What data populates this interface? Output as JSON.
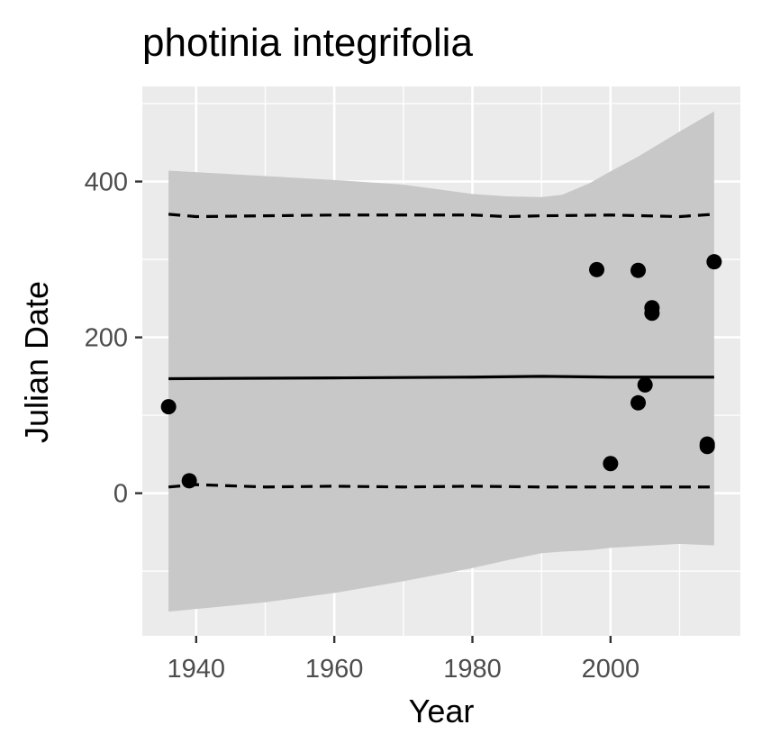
{
  "chart_data": {
    "type": "scatter",
    "title": "photinia integrifolia",
    "xlabel": "Year",
    "ylabel": "Julian Date",
    "xlim": [
      1932.2,
      2018.8
    ],
    "ylim": [
      -183,
      522
    ],
    "x_ticks": [
      1940,
      1960,
      1980,
      2000
    ],
    "x_tick_labels": [
      "1940",
      "1960",
      "1980",
      "2000"
    ],
    "x_minor_ticks": [
      1930,
      1950,
      1970,
      1990,
      2010
    ],
    "y_ticks": [
      0,
      200,
      400
    ],
    "y_tick_labels": [
      "0",
      "200",
      "400"
    ],
    "y_minor_ticks": [
      -100,
      100,
      300,
      500
    ],
    "grid": true,
    "legend": "none",
    "colors": {
      "panel_background": "#ebebeb",
      "grid": "#ffffff",
      "ribbon": "#c8c8c8",
      "line": "#000000",
      "points": "#000000"
    },
    "points": [
      {
        "x": 1936,
        "y": 111
      },
      {
        "x": 1939,
        "y": 16
      },
      {
        "x": 1998,
        "y": 287
      },
      {
        "x": 2000,
        "y": 38
      },
      {
        "x": 2004,
        "y": 286
      },
      {
        "x": 2004,
        "y": 116
      },
      {
        "x": 2005,
        "y": 139
      },
      {
        "x": 2006,
        "y": 238
      },
      {
        "x": 2006,
        "y": 231
      },
      {
        "x": 2014,
        "y": 63
      },
      {
        "x": 2014,
        "y": 60
      },
      {
        "x": 2015,
        "y": 297
      }
    ],
    "series": [
      {
        "kind": "ribbon",
        "x": [
          1936,
          1950,
          1960,
          1970,
          1980,
          1985,
          1990,
          1993,
          1997,
          2000,
          2004,
          2010,
          2015
        ],
        "lower": [
          -152,
          -140,
          -128,
          -113,
          -96,
          -86,
          -77,
          -75,
          -73,
          -70,
          -68,
          -65,
          -67
        ],
        "upper": [
          414,
          407,
          402,
          396,
          384,
          381,
          380,
          383,
          398,
          413,
          432,
          464,
          490
        ]
      },
      {
        "kind": "line",
        "style": "solid",
        "x": [
          1936,
          1960,
          1980,
          1990,
          2000,
          2015
        ],
        "y": [
          147,
          148,
          149,
          150,
          149,
          149
        ]
      },
      {
        "kind": "line",
        "style": "dashed",
        "x": [
          1936,
          1940,
          1950,
          1960,
          1970,
          1980,
          1985,
          1990,
          2000,
          2005,
          2010,
          2015
        ],
        "y": [
          358,
          355,
          356,
          357,
          357,
          357,
          355,
          356,
          357,
          356,
          355,
          358
        ]
      },
      {
        "kind": "line",
        "style": "dashed",
        "x": [
          1936,
          1940,
          1950,
          1960,
          1970,
          1980,
          1990,
          2000,
          2010,
          2015
        ],
        "y": [
          8,
          11,
          8,
          9,
          8,
          9,
          8,
          8,
          8,
          8
        ]
      }
    ]
  }
}
